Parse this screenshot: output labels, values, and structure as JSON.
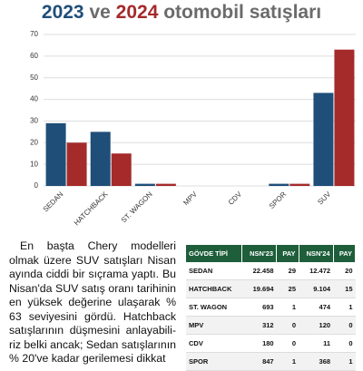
{
  "header": {
    "title_parts": [
      "2023",
      "ve",
      "2024",
      "otomobil satışları"
    ]
  },
  "chart_data": {
    "type": "bar",
    "categories": [
      "SEDAN",
      "HATCHBACK",
      "ST. WAGON",
      "MPV",
      "CDV",
      "SPOR",
      "SUV"
    ],
    "series": [
      {
        "color": "#1f4e79",
        "values": [
          29,
          25,
          1,
          0,
          0,
          1,
          43
        ]
      },
      {
        "color": "#a52a2a",
        "values": [
          20,
          15,
          1,
          0,
          0,
          1,
          63
        ]
      }
    ],
    "ylim": [
      0,
      70
    ],
    "yticks": [
      0,
      10,
      20,
      30,
      40,
      50,
      60,
      70
    ],
    "grid": true
  },
  "article": {
    "paragraph": "En başta Chery modelleri olmak üzere SUV satışları Nisan ayında ciddi bir sıçrama yaptı. Bu Nisan'da SUV satış oranı tarihinin en yüksek değerine ulaşarak % 63 seviyesini gördü. Hatchback satışlarının düşmesini anlayabili­riz belki ancak; Sedan satışlarının % 20've kadar gerilemesi dikkat"
  },
  "table": {
    "header": [
      "GÖVDE TİPİ",
      "NSN'23",
      "PAY",
      "NSN'24",
      "PAY"
    ],
    "rows": [
      [
        "SEDAN",
        "22.458",
        "29",
        "12.472",
        "20"
      ],
      [
        "HATCHBACK",
        "19.694",
        "25",
        "9.104",
        "15"
      ],
      [
        "ST. WAGON",
        "693",
        "1",
        "474",
        "1"
      ],
      [
        "MPV",
        "312",
        "0",
        "120",
        "0"
      ],
      [
        "CDV",
        "180",
        "0",
        "11",
        "0"
      ],
      [
        "SPOR",
        "847",
        "1",
        "368",
        "1"
      ]
    ]
  }
}
